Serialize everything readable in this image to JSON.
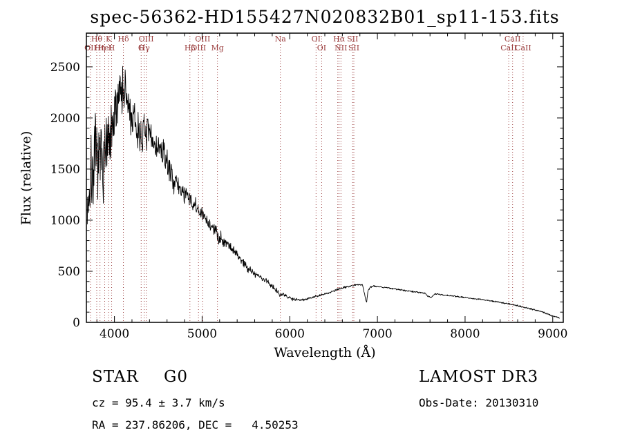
{
  "title": "spec-56362-HD155427N020832B01_sp11-153.fits",
  "axes": {
    "xlabel": "Wavelength (Å)",
    "ylabel": "Flux (relative)"
  },
  "annotations": {
    "class_label": "STAR",
    "subclass": "G0",
    "survey": "LAMOST DR3",
    "cz_line": "cz = 95.4 ± 3.7 km/s",
    "radec_line": "RA = 237.86206, DEC =   4.50253",
    "obs_date": "Obs-Date: 20130310"
  },
  "chart_data": {
    "type": "line",
    "title": "spec-56362-HD155427N020832B01_sp11-153.fits",
    "xlabel": "Wavelength (Å)",
    "ylabel": "Flux (relative)",
    "xlim": [
      3680,
      9120
    ],
    "ylim": [
      0,
      2830
    ],
    "x_ticks": [
      4000,
      5000,
      6000,
      7000,
      8000,
      9000
    ],
    "y_ticks": [
      0,
      500,
      1000,
      1500,
      2000,
      2500
    ],
    "x_minor_step": 200,
    "y_minor_step": 100,
    "grid": false,
    "colors": {
      "spectrum": "#000000",
      "marker": "#993a3a"
    },
    "noise_seed": 7,
    "sample_step": 4,
    "noise_scale": 1.35,
    "series": [
      {
        "name": "flux",
        "envelope": [
          [
            3690,
            1150
          ],
          [
            3715,
            1300
          ],
          [
            3740,
            1450
          ],
          [
            3770,
            1550
          ],
          [
            3800,
            1600
          ],
          [
            3830,
            1520
          ],
          [
            3860,
            1580
          ],
          [
            3890,
            1640
          ],
          [
            3920,
            1690
          ],
          [
            3950,
            1740
          ],
          [
            3980,
            1850
          ],
          [
            4010,
            2000
          ],
          [
            4040,
            2250
          ],
          [
            4070,
            2320
          ],
          [
            4100,
            2260
          ],
          [
            4130,
            2200
          ],
          [
            4160,
            2100
          ],
          [
            4200,
            1980
          ],
          [
            4240,
            1920
          ],
          [
            4280,
            1840
          ],
          [
            4320,
            1830
          ],
          [
            4360,
            1860
          ],
          [
            4400,
            1820
          ],
          [
            4440,
            1770
          ],
          [
            4480,
            1710
          ],
          [
            4520,
            1690
          ],
          [
            4560,
            1650
          ],
          [
            4600,
            1560
          ],
          [
            4640,
            1470
          ],
          [
            4680,
            1390
          ],
          [
            4720,
            1340
          ],
          [
            4760,
            1300
          ],
          [
            4800,
            1260
          ],
          [
            4850,
            1200
          ],
          [
            4900,
            1150
          ],
          [
            4950,
            1100
          ],
          [
            5000,
            1050
          ],
          [
            5050,
            1000
          ],
          [
            5100,
            950
          ],
          [
            5150,
            890
          ],
          [
            5200,
            830
          ],
          [
            5250,
            800
          ],
          [
            5300,
            765
          ],
          [
            5350,
            715
          ],
          [
            5400,
            660
          ],
          [
            5450,
            610
          ],
          [
            5500,
            555
          ],
          [
            5550,
            515
          ],
          [
            5600,
            478
          ],
          [
            5650,
            448
          ],
          [
            5700,
            422
          ],
          [
            5750,
            395
          ],
          [
            5800,
            352
          ],
          [
            5850,
            318
          ],
          [
            5893,
            268
          ],
          [
            5920,
            272
          ],
          [
            5960,
            256
          ],
          [
            6000,
            240
          ],
          [
            6060,
            226
          ],
          [
            6120,
            220
          ],
          [
            6180,
            228
          ],
          [
            6240,
            240
          ],
          [
            6300,
            254
          ],
          [
            6360,
            267
          ],
          [
            6420,
            282
          ],
          [
            6480,
            300
          ],
          [
            6540,
            318
          ],
          [
            6600,
            337
          ],
          [
            6660,
            351
          ],
          [
            6720,
            362
          ],
          [
            6780,
            371
          ],
          [
            6830,
            367
          ],
          [
            6862,
            240
          ],
          [
            6876,
            190
          ],
          [
            6892,
            310
          ],
          [
            6920,
            346
          ],
          [
            6960,
            356
          ],
          [
            7000,
            351
          ],
          [
            7060,
            344
          ],
          [
            7120,
            338
          ],
          [
            7180,
            329
          ],
          [
            7240,
            321
          ],
          [
            7300,
            313
          ],
          [
            7360,
            306
          ],
          [
            7420,
            299
          ],
          [
            7480,
            293
          ],
          [
            7540,
            287
          ],
          [
            7590,
            249
          ],
          [
            7615,
            243
          ],
          [
            7650,
            278
          ],
          [
            7700,
            274
          ],
          [
            7760,
            268
          ],
          [
            7820,
            262
          ],
          [
            7880,
            256
          ],
          [
            7940,
            250
          ],
          [
            8000,
            244
          ],
          [
            8060,
            237
          ],
          [
            8120,
            230
          ],
          [
            8180,
            224
          ],
          [
            8240,
            217
          ],
          [
            8300,
            209
          ],
          [
            8360,
            201
          ],
          [
            8420,
            193
          ],
          [
            8480,
            184
          ],
          [
            8540,
            174
          ],
          [
            8600,
            163
          ],
          [
            8660,
            151
          ],
          [
            8720,
            139
          ],
          [
            8780,
            126
          ],
          [
            8840,
            112
          ],
          [
            8900,
            96
          ],
          [
            8960,
            78
          ],
          [
            9020,
            58
          ],
          [
            9080,
            40
          ]
        ]
      }
    ],
    "noise_profile": [
      [
        3690,
        470
      ],
      [
        3760,
        450
      ],
      [
        3830,
        430
      ],
      [
        3900,
        400
      ],
      [
        3970,
        360
      ],
      [
        4040,
        330
      ],
      [
        4110,
        300
      ],
      [
        4180,
        265
      ],
      [
        4250,
        235
      ],
      [
        4320,
        210
      ],
      [
        4390,
        185
      ],
      [
        4460,
        165
      ],
      [
        4530,
        148
      ],
      [
        4600,
        133
      ],
      [
        4700,
        118
      ],
      [
        4800,
        105
      ],
      [
        4900,
        95
      ],
      [
        5000,
        87
      ],
      [
        5100,
        79
      ],
      [
        5200,
        71
      ],
      [
        5300,
        63
      ],
      [
        5400,
        56
      ],
      [
        5500,
        49
      ],
      [
        5600,
        43
      ],
      [
        5700,
        37
      ],
      [
        5800,
        31
      ],
      [
        5900,
        25
      ],
      [
        6000,
        19
      ],
      [
        6100,
        15
      ],
      [
        6200,
        13
      ],
      [
        6400,
        11
      ],
      [
        6600,
        10
      ],
      [
        6800,
        9
      ],
      [
        7000,
        8
      ],
      [
        7300,
        8
      ],
      [
        7600,
        7
      ],
      [
        8000,
        7
      ],
      [
        8400,
        7
      ],
      [
        8800,
        8
      ],
      [
        9080,
        9
      ]
    ],
    "spectral_lines": [
      {
        "label": "Hθ",
        "wavelength": 3798,
        "row": 1
      },
      {
        "label": "K",
        "wavelength": 3933,
        "row": 1
      },
      {
        "label": "Hδ",
        "wavelength": 4102,
        "row": 1
      },
      {
        "label": "OIII",
        "wavelength": 4363,
        "row": 1
      },
      {
        "label": "OIII",
        "wavelength": 5007,
        "row": 1
      },
      {
        "label": "Na",
        "wavelength": 5893,
        "row": 1
      },
      {
        "label": "OI",
        "wavelength": 6300,
        "row": 1
      },
      {
        "label": "Hα",
        "wavelength": 6563,
        "row": 1
      },
      {
        "label": "SII",
        "wavelength": 6717,
        "row": 1
      },
      {
        "label": "CaII",
        "wavelength": 8542,
        "row": 1
      },
      {
        "label": "OII",
        "wavelength": 3727,
        "row": 2
      },
      {
        "label": "Hη",
        "wavelength": 3835,
        "row": 2
      },
      {
        "label": "HeI",
        "wavelength": 3889,
        "row": 2
      },
      {
        "label": "H",
        "wavelength": 3968,
        "row": 2
      },
      {
        "label": "G",
        "wavelength": 4305,
        "row": 2
      },
      {
        "label": "Hγ",
        "wavelength": 4340,
        "row": 2
      },
      {
        "label": "Hβ",
        "wavelength": 4861,
        "row": 2
      },
      {
        "label": "OIII",
        "wavelength": 4959,
        "row": 2
      },
      {
        "label": "Mg",
        "wavelength": 5175,
        "row": 2
      },
      {
        "label": "OI",
        "wavelength": 6364,
        "row": 2
      },
      {
        "label": "NII",
        "wavelength": 6584,
        "row": 2
      },
      {
        "label": "SII",
        "wavelength": 6731,
        "row": 2
      },
      {
        "label": "CaII",
        "wavelength": 8498,
        "row": 2
      },
      {
        "label": "CaII",
        "wavelength": 8662,
        "row": 2
      },
      {
        "label": "",
        "wavelength": 6548,
        "row": 0
      }
    ]
  }
}
